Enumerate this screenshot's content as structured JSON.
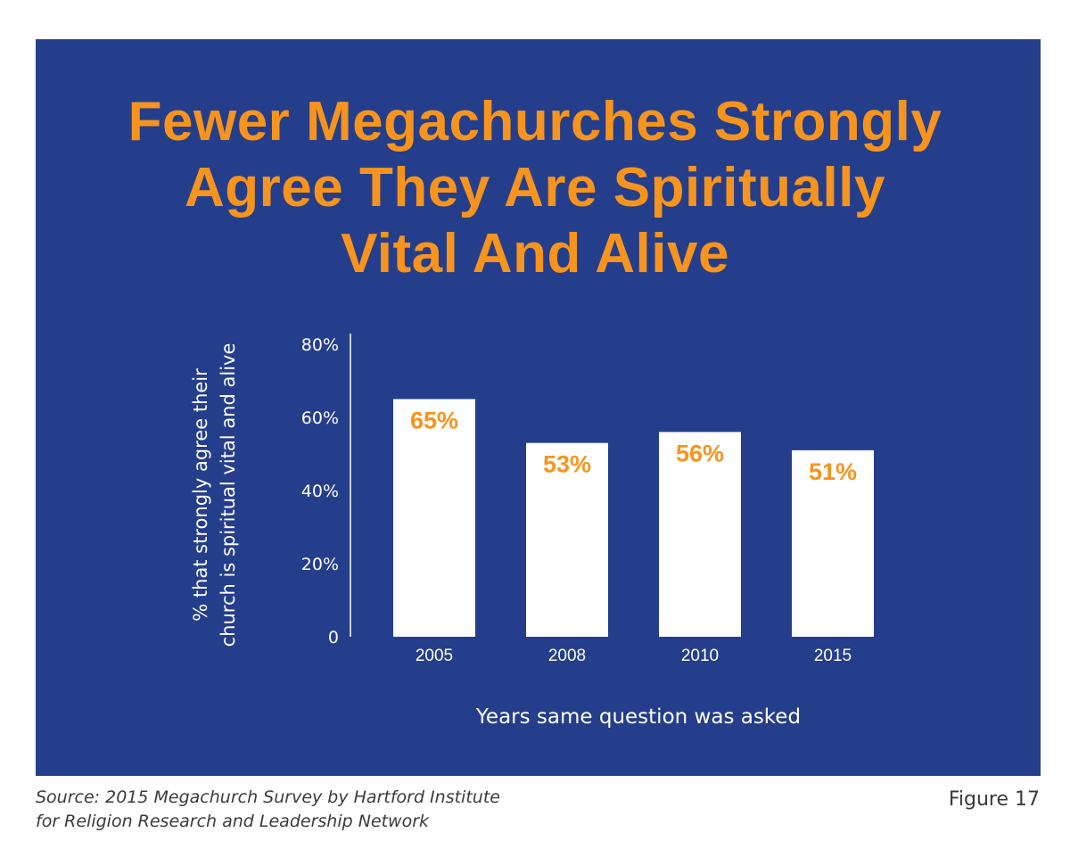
{
  "colors": {
    "panel": "#243e8c",
    "accent": "#f7941d",
    "bar": "#ffffff",
    "text_light": "#ffffff",
    "footer_text": "#3a3a3a"
  },
  "chart_data": {
    "type": "bar",
    "title_lines": [
      "Fewer Megachurches Strongly",
      "Agree They Are Spiritually",
      "Vital And Alive"
    ],
    "ylabel_lines": [
      "% that strongly agree their",
      "church is spiritual vital and alive"
    ],
    "xlabel": "Years same question was asked",
    "categories": [
      "2005",
      "2008",
      "2010",
      "2015"
    ],
    "values": [
      65,
      53,
      56,
      51
    ],
    "data_labels": [
      "65%",
      "53%",
      "56%",
      "51%"
    ],
    "ylim": [
      0,
      80
    ],
    "yticks": [
      0,
      20,
      40,
      60,
      80
    ],
    "ytick_labels": [
      "0",
      "20%",
      "40%",
      "60%",
      "80%"
    ],
    "grid": false,
    "legend": "none"
  },
  "footer": {
    "source_lines": [
      "Source: 2015 Megachurch Survey by Hartford Institute",
      "for Religion Research and Leadership Network"
    ],
    "figure_label": "Figure 17"
  }
}
